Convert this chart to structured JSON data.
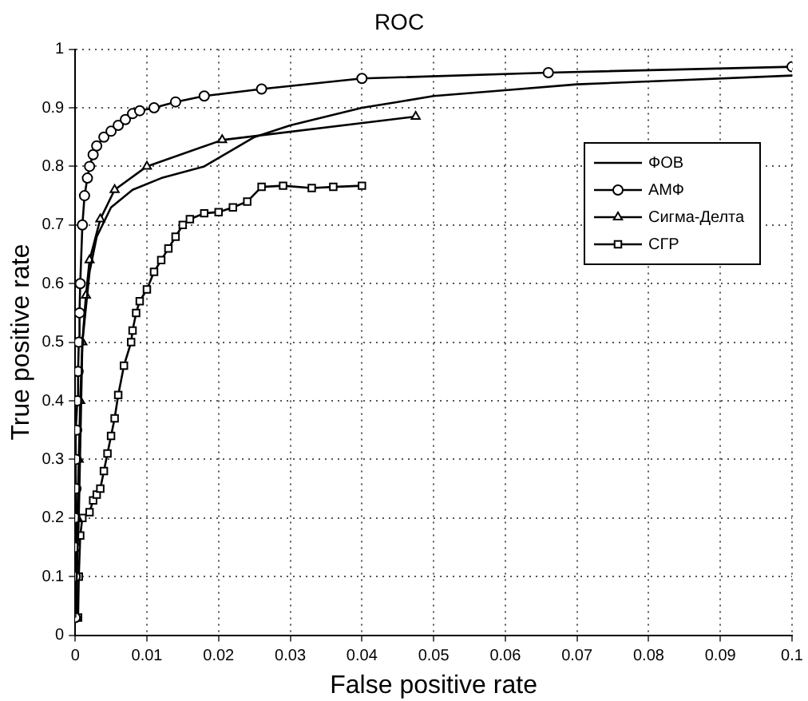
{
  "chart_data": {
    "type": "line",
    "title": "ROC",
    "xlabel": "False positive rate",
    "ylabel": "True positive rate",
    "xlim": [
      0,
      0.1
    ],
    "xticks": [
      0,
      0.01,
      0.02,
      0.03,
      0.04,
      0.05,
      0.06,
      0.07,
      0.08,
      0.09,
      0.1
    ],
    "ylim": [
      0,
      1
    ],
    "yticks": [
      0,
      0.1,
      0.2,
      0.3,
      0.4,
      0.5,
      0.6,
      0.7,
      0.8,
      0.9,
      1
    ],
    "grid": true,
    "legend": "right",
    "line_style": "solid",
    "series": [
      {
        "name": "ФОВ",
        "color": "#000000",
        "marker": "none",
        "x": [
          0,
          0.0005,
          0.001,
          0.002,
          0.003,
          0.005,
          0.008,
          0.012,
          0.018,
          0.025,
          0.03,
          0.04,
          0.045,
          0.05,
          0.06,
          0.07,
          0.08,
          0.1
        ],
        "values": [
          0.03,
          0.2,
          0.5,
          0.62,
          0.68,
          0.73,
          0.76,
          0.78,
          0.8,
          0.85,
          0.87,
          0.9,
          0.91,
          0.92,
          0.93,
          0.94,
          0.945,
          0.955
        ]
      },
      {
        "name": "АМФ",
        "color": "#000000",
        "marker": "circle",
        "x": [
          0,
          0,
          0,
          0,
          0.0001,
          0.0001,
          0.0002,
          0.0003,
          0.0004,
          0.0005,
          0.0006,
          0.0007,
          0.001,
          0.0013,
          0.0017,
          0.002,
          0.0025,
          0.003,
          0.004,
          0.005,
          0.006,
          0.007,
          0.008,
          0.009,
          0.011,
          0.014,
          0.018,
          0.026,
          0.04,
          0.066,
          0.1
        ],
        "values": [
          0.03,
          0.1,
          0.15,
          0.2,
          0.25,
          0.3,
          0.35,
          0.4,
          0.45,
          0.5,
          0.55,
          0.6,
          0.7,
          0.75,
          0.78,
          0.8,
          0.82,
          0.835,
          0.85,
          0.86,
          0.87,
          0.88,
          0.89,
          0.895,
          0.9,
          0.91,
          0.92,
          0.932,
          0.95,
          0.96,
          0.97
        ]
      },
      {
        "name": "Сигма-Делта",
        "color": "#000000",
        "marker": "triangle",
        "x": [
          0.0002,
          0.0003,
          0.0005,
          0.0007,
          0.001,
          0.0015,
          0.002,
          0.0035,
          0.0055,
          0.01,
          0.0205,
          0.0475
        ],
        "values": [
          0.03,
          0.2,
          0.3,
          0.4,
          0.5,
          0.58,
          0.64,
          0.71,
          0.76,
          0.8,
          0.845,
          0.885
        ]
      },
      {
        "name": "СГР",
        "color": "#000000",
        "marker": "square",
        "x": [
          0.0004,
          0.0005,
          0.0007,
          0.001,
          0.002,
          0.0025,
          0.003,
          0.0035,
          0.004,
          0.0045,
          0.005,
          0.0055,
          0.006,
          0.0068,
          0.0078,
          0.008,
          0.0085,
          0.009,
          0.01,
          0.011,
          0.012,
          0.013,
          0.014,
          0.015,
          0.016,
          0.018,
          0.02,
          0.022,
          0.024,
          0.026,
          0.029,
          0.033,
          0.036,
          0.04
        ],
        "values": [
          0.03,
          0.1,
          0.17,
          0.2,
          0.21,
          0.23,
          0.24,
          0.25,
          0.28,
          0.31,
          0.34,
          0.37,
          0.41,
          0.46,
          0.5,
          0.52,
          0.55,
          0.57,
          0.59,
          0.62,
          0.64,
          0.66,
          0.68,
          0.7,
          0.71,
          0.72,
          0.722,
          0.73,
          0.74,
          0.765,
          0.767,
          0.763,
          0.765,
          0.767
        ]
      }
    ]
  }
}
